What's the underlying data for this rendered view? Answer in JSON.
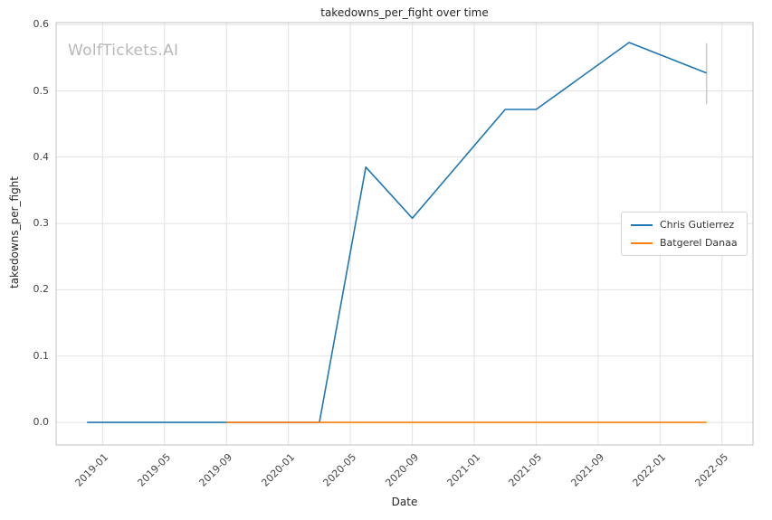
{
  "chart_data": {
    "type": "line",
    "title": "takedowns_per_fight over time",
    "xlabel": "Date",
    "ylabel": "takedowns_per_fight",
    "watermark": "WolfTickets.AI",
    "grid": true,
    "legend_position": "center-right",
    "xlim_decimal_years": [
      2018.75,
      2022.5
    ],
    "ylim": [
      -0.034,
      0.603
    ],
    "x_ticks": [
      "2019-01",
      "2019-05",
      "2019-09",
      "2020-01",
      "2020-05",
      "2020-09",
      "2021-01",
      "2021-05",
      "2021-09",
      "2022-01",
      "2022-05"
    ],
    "y_ticks": [
      "0.0",
      "0.1",
      "0.2",
      "0.3",
      "0.4",
      "0.5",
      "0.6"
    ],
    "series": [
      {
        "name": "Chris Gutierrez",
        "color": "#1f77b4",
        "points": [
          {
            "date": "2018-12",
            "value": 0.0
          },
          {
            "date": "2019-03",
            "value": 0.0
          },
          {
            "date": "2019-08",
            "value": 0.0
          },
          {
            "date": "2020-03",
            "value": 0.0
          },
          {
            "date": "2020-06",
            "value": 0.385
          },
          {
            "date": "2020-09",
            "value": 0.308
          },
          {
            "date": "2021-03",
            "value": 0.472
          },
          {
            "date": "2021-05",
            "value": 0.472
          },
          {
            "date": "2021-11",
            "value": 0.573
          },
          {
            "date": "2022-04",
            "value": 0.527
          }
        ]
      },
      {
        "name": "Batgerel Danaa",
        "color": "#ff7f0e",
        "points": [
          {
            "date": "2019-09",
            "value": 0.0
          },
          {
            "date": "2020-01",
            "value": 0.0
          },
          {
            "date": "2020-06",
            "value": 0.0
          },
          {
            "date": "2020-11",
            "value": 0.0
          },
          {
            "date": "2021-04",
            "value": 0.0
          },
          {
            "date": "2021-09",
            "value": 0.0
          },
          {
            "date": "2022-04",
            "value": 0.0
          }
        ]
      }
    ],
    "error_bar": {
      "date": "2022-04",
      "low": 0.48,
      "high": 0.572,
      "color": "#c9c9c9"
    },
    "colors": {
      "grid": "#e2e2e2",
      "spine": "#c0c0c0",
      "watermark": "#b8b8b8",
      "background": "#ffffff"
    }
  }
}
